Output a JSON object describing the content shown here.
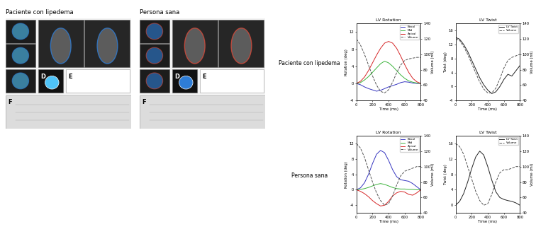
{
  "image_panels": [
    {
      "title": "Paciente con lipedema",
      "labels": [
        "D",
        "E",
        "F"
      ]
    },
    {
      "title": "Persona sana",
      "labels": [
        "D",
        "E",
        "F"
      ]
    }
  ],
  "row_labels": [
    "Paciente con lipedema",
    "Persona sana"
  ],
  "chart_data": [
    {
      "type": "line",
      "title": "LV Rotation",
      "x_label": "Time (ms)",
      "y_label": "Rotation (deg)",
      "y2_label": "Volume (ml)",
      "x": [
        0,
        50,
        100,
        150,
        200,
        250,
        300,
        350,
        400,
        450,
        500,
        550,
        600,
        650,
        700,
        750,
        800
      ],
      "xlim": [
        0,
        800
      ],
      "xticks": [
        0,
        200,
        400,
        600,
        800
      ],
      "ylim": [
        -4,
        14
      ],
      "yticks": [
        -4,
        0,
        4,
        8,
        12
      ],
      "y2lim": [
        40,
        140
      ],
      "y2ticks": [
        40,
        60,
        80,
        100,
        120,
        140
      ],
      "legend": "upper right",
      "series": [
        {
          "name": "Basal",
          "color": "#3535c0",
          "line_style": "solid",
          "values": [
            0,
            -0.3,
            -0.8,
            -1.2,
            -1.5,
            -1.8,
            -1.6,
            -1.2,
            -0.8,
            -0.5,
            -0.2,
            0.2,
            0.4,
            0.3,
            0.1,
            0,
            0
          ]
        },
        {
          "name": "Mid",
          "color": "#3cb43c",
          "line_style": "solid",
          "values": [
            0,
            0.2,
            0.8,
            1.6,
            2.6,
            3.6,
            4.6,
            5.2,
            4.8,
            4.0,
            3.0,
            2.0,
            1.2,
            0.6,
            0.3,
            0.1,
            0
          ]
        },
        {
          "name": "Apical",
          "color": "#d62728",
          "line_style": "solid",
          "values": [
            0,
            0.5,
            1.5,
            3.0,
            4.8,
            6.6,
            8.2,
            9.4,
            9.8,
            9.4,
            8.2,
            6.4,
            4.4,
            2.6,
            1.2,
            0.4,
            0
          ]
        },
        {
          "name": "Volume",
          "color": "#555555",
          "line_style": "dashed",
          "axis": "y2",
          "values": [
            120,
            112,
            100,
            86,
            72,
            60,
            52,
            50,
            54,
            64,
            76,
            86,
            92,
            94,
            95,
            96,
            96
          ]
        }
      ]
    },
    {
      "type": "line",
      "title": "LV Twist",
      "x_label": "Time (ms)",
      "y_label": "Twist (deg)",
      "y2_label": "Volume (ml)",
      "x": [
        0,
        50,
        100,
        150,
        200,
        250,
        300,
        350,
        400,
        450,
        500,
        550,
        600,
        650,
        700,
        750,
        800
      ],
      "xlim": [
        0,
        800
      ],
      "xticks": [
        0,
        200,
        400,
        600,
        800
      ],
      "ylim": [
        -4,
        18
      ],
      "yticks": [
        -4,
        0,
        4,
        8,
        12,
        16
      ],
      "y2lim": [
        40,
        140
      ],
      "y2ticks": [
        40,
        60,
        80,
        100,
        120,
        140
      ],
      "legend": "upper right",
      "series": [
        {
          "name": "LV Twist",
          "color": "#222222",
          "line_style": "solid",
          "values": [
            14,
            13.5,
            12,
            10,
            7.5,
            5,
            2.5,
            0.5,
            -1,
            -2,
            -1.5,
            0,
            2,
            3.5,
            3,
            4.5,
            6
          ]
        },
        {
          "name": "Volume",
          "color": "#555555",
          "line_style": "dashed",
          "axis": "y2",
          "values": [
            120,
            118,
            110,
            100,
            88,
            76,
            64,
            55,
            50,
            50,
            56,
            68,
            82,
            92,
            96,
            98,
            100
          ]
        }
      ]
    },
    {
      "type": "line",
      "title": "LV Rotation",
      "x_label": "Time (ms)",
      "y_label": "Rotation (deg)",
      "y2_label": "Volume (ml)",
      "x": [
        0,
        50,
        100,
        150,
        200,
        250,
        300,
        350,
        400,
        450,
        500,
        550,
        600,
        650,
        700,
        750,
        800
      ],
      "xlim": [
        0,
        800
      ],
      "xticks": [
        0,
        200,
        400,
        600,
        800
      ],
      "ylim": [
        -6,
        14
      ],
      "yticks": [
        -4,
        0,
        4,
        8,
        12
      ],
      "y2lim": [
        40,
        140
      ],
      "y2ticks": [
        40,
        60,
        80,
        100,
        120,
        140
      ],
      "legend": "upper right",
      "series": [
        {
          "name": "Basal",
          "color": "#3535c0",
          "line_style": "solid",
          "values": [
            0,
            0.5,
            1.8,
            4,
            6.8,
            9.2,
            10.2,
            9.6,
            7.6,
            5.2,
            3.4,
            2.6,
            2.4,
            2.2,
            1.6,
            0.8,
            0
          ]
        },
        {
          "name": "Mid",
          "color": "#3cb43c",
          "line_style": "solid",
          "values": [
            0,
            0.1,
            0.3,
            0.6,
            1,
            1.4,
            1.6,
            1.4,
            1,
            0.6,
            0.3,
            0.2,
            0.2,
            0.1,
            0.1,
            0,
            0
          ]
        },
        {
          "name": "Apical",
          "color": "#d62728",
          "line_style": "solid",
          "values": [
            0,
            -0.4,
            -1,
            -1.8,
            -2.8,
            -3.6,
            -4.2,
            -4,
            -3,
            -1.6,
            -0.8,
            -0.4,
            -0.6,
            -1.2,
            -1.4,
            -0.8,
            0
          ]
        },
        {
          "name": "Volume",
          "color": "#555555",
          "line_style": "dashed",
          "axis": "y2",
          "values": [
            130,
            124,
            112,
            96,
            80,
            66,
            56,
            50,
            52,
            62,
            76,
            88,
            94,
            96,
            98,
            100,
            100
          ]
        }
      ]
    },
    {
      "type": "line",
      "title": "LV Twist",
      "x_label": "Time (ms)",
      "y_label": "Twist (deg)",
      "y2_label": "Volume (ml)",
      "x": [
        0,
        50,
        100,
        150,
        200,
        250,
        300,
        350,
        400,
        450,
        500,
        550,
        600,
        650,
        700,
        750,
        800
      ],
      "xlim": [
        0,
        800
      ],
      "xticks": [
        0,
        200,
        400,
        600,
        800
      ],
      "ylim": [
        -2,
        18
      ],
      "yticks": [
        0,
        4,
        8,
        12,
        16
      ],
      "y2lim": [
        40,
        140
      ],
      "y2ticks": [
        40,
        60,
        80,
        100,
        120,
        140
      ],
      "legend": "upper right",
      "series": [
        {
          "name": "LV Twist",
          "color": "#222222",
          "line_style": "solid",
          "values": [
            0,
            1,
            3,
            6,
            9.5,
            12.5,
            14,
            13,
            10,
            6.5,
            3.5,
            2,
            1.5,
            1.2,
            1,
            0.6,
            0
          ]
        },
        {
          "name": "Volume",
          "color": "#555555",
          "line_style": "dashed",
          "axis": "y2",
          "values": [
            130,
            126,
            116,
            100,
            84,
            68,
            56,
            50,
            52,
            64,
            80,
            92,
            96,
            96,
            98,
            100,
            100
          ]
        }
      ]
    }
  ]
}
